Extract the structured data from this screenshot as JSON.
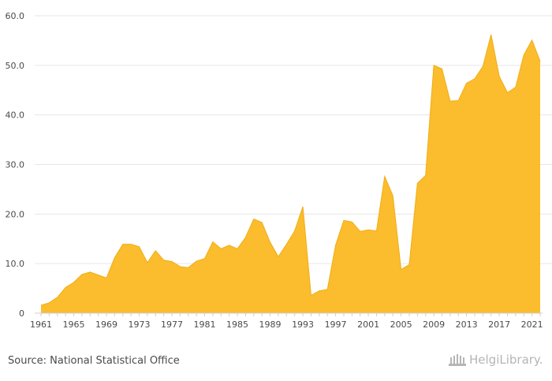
{
  "source_text": "Source: National Statistical Office",
  "brand_text": "HelgiLibrary.",
  "colors": {
    "area": "#fbbd2e",
    "area_stroke": "#f0ad14",
    "grid": "#e6e6e6",
    "axis": "#cfcfcf",
    "text": "#4a4a4a",
    "brand": "#b5b5b5"
  },
  "chart_data": {
    "type": "area",
    "title": "",
    "xlabel": "",
    "ylabel": "",
    "x": [
      1961,
      1962,
      1963,
      1964,
      1965,
      1966,
      1967,
      1968,
      1969,
      1970,
      1971,
      1972,
      1973,
      1974,
      1975,
      1976,
      1977,
      1978,
      1979,
      1980,
      1981,
      1982,
      1983,
      1984,
      1985,
      1986,
      1987,
      1988,
      1989,
      1990,
      1991,
      1992,
      1993,
      1994,
      1995,
      1996,
      1997,
      1998,
      1999,
      2000,
      2001,
      2002,
      2003,
      2004,
      2005,
      2006,
      2007,
      2008,
      2009,
      2010,
      2011,
      2012,
      2013,
      2014,
      2015,
      2016,
      2017,
      2018,
      2019,
      2020,
      2021,
      2022
    ],
    "values": [
      1.6,
      2.1,
      3.2,
      5.2,
      6.2,
      7.8,
      8.3,
      7.7,
      7.1,
      11.2,
      13.9,
      13.9,
      13.4,
      10.2,
      12.6,
      10.7,
      10.4,
      9.4,
      9.2,
      10.5,
      11.0,
      14.4,
      13.0,
      13.7,
      13.0,
      15.3,
      19.0,
      18.3,
      14.3,
      11.4,
      13.9,
      16.6,
      21.5,
      3.6,
      4.5,
      4.8,
      13.7,
      18.7,
      18.4,
      16.5,
      16.8,
      16.6,
      27.6,
      23.7,
      8.8,
      9.8,
      26.2,
      27.8,
      50.0,
      49.3,
      42.8,
      42.9,
      46.4,
      47.3,
      49.8,
      56.2,
      47.8,
      44.5,
      45.6,
      52.1,
      55.1,
      50.8
    ],
    "xticks": [
      "1961",
      "1965",
      "1969",
      "1973",
      "1977",
      "1981",
      "1985",
      "1989",
      "1993",
      "1997",
      "2001",
      "2005",
      "2009",
      "2013",
      "2017",
      "2021"
    ],
    "yticks": [
      "0",
      "10.0",
      "20.0",
      "30.0",
      "40.0",
      "50.0",
      "60.0"
    ],
    "ylim": [
      0,
      60
    ],
    "xlim": [
      1961,
      2022
    ],
    "grid": true,
    "legend": "none"
  }
}
